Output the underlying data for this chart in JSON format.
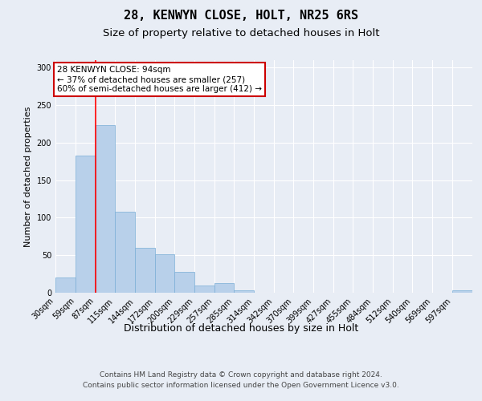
{
  "title": "28, KENWYN CLOSE, HOLT, NR25 6RS",
  "subtitle": "Size of property relative to detached houses in Holt",
  "xlabel": "Distribution of detached houses by size in Holt",
  "ylabel": "Number of detached properties",
  "bin_labels": [
    "30sqm",
    "59sqm",
    "87sqm",
    "115sqm",
    "144sqm",
    "172sqm",
    "200sqm",
    "229sqm",
    "257sqm",
    "285sqm",
    "314sqm",
    "342sqm",
    "370sqm",
    "399sqm",
    "427sqm",
    "455sqm",
    "484sqm",
    "512sqm",
    "540sqm",
    "569sqm",
    "597sqm"
  ],
  "bar_heights": [
    20,
    183,
    223,
    108,
    60,
    51,
    28,
    10,
    13,
    3,
    0,
    0,
    0,
    0,
    0,
    0,
    0,
    0,
    0,
    0,
    3
  ],
  "bar_color": "#b8d0ea",
  "bar_edgecolor": "#7aaed6",
  "red_line_x": 87,
  "bin_edges_sqm": [
    30,
    59,
    87,
    115,
    144,
    172,
    200,
    229,
    257,
    285,
    314,
    342,
    370,
    399,
    427,
    455,
    484,
    512,
    540,
    569,
    597,
    626
  ],
  "annotation_text": "28 KENWYN CLOSE: 94sqm\n← 37% of detached houses are smaller (257)\n60% of semi-detached houses are larger (412) →",
  "annotation_box_color": "#ffffff",
  "annotation_box_edgecolor": "#cc0000",
  "ylim": [
    0,
    310
  ],
  "yticks": [
    0,
    50,
    100,
    150,
    200,
    250,
    300
  ],
  "footer_line1": "Contains HM Land Registry data © Crown copyright and database right 2024.",
  "footer_line2": "Contains public sector information licensed under the Open Government Licence v3.0.",
  "background_color": "#e8edf5",
  "title_fontsize": 11,
  "subtitle_fontsize": 9.5,
  "xlabel_fontsize": 9,
  "ylabel_fontsize": 8,
  "tick_fontsize": 7,
  "annotation_fontsize": 7.5,
  "footer_fontsize": 6.5
}
